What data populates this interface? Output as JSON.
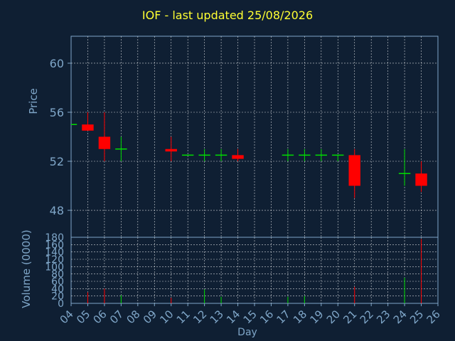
{
  "chart_data": {
    "type": "candlestick",
    "title": "IOF - last updated 25/08/2026",
    "xlabel": "Day",
    "ylabel": "Price",
    "volume_label": "Volume (0000)",
    "x_ticks": [
      "04",
      "05",
      "06",
      "07",
      "08",
      "09",
      "10",
      "11",
      "12",
      "13",
      "14",
      "15",
      "16",
      "17",
      "18",
      "19",
      "20",
      "21",
      "22",
      "23",
      "24",
      "25",
      "26"
    ],
    "price": {
      "ylim": [
        45.8,
        62.2
      ],
      "ticks": [
        48,
        52,
        56,
        60
      ],
      "candles": [
        {
          "day": "04",
          "open": 55.0,
          "high": 55.0,
          "low": 55.0,
          "close": 55.0
        },
        {
          "day": "05",
          "open": 55.0,
          "high": 56.0,
          "low": 54.5,
          "close": 54.5
        },
        {
          "day": "06",
          "open": 54.0,
          "high": 56.0,
          "low": 52.0,
          "close": 53.0
        },
        {
          "day": "07",
          "open": 53.0,
          "high": 54.0,
          "low": 52.0,
          "close": 53.0
        },
        {
          "day": "10",
          "open": 53.0,
          "high": 54.0,
          "low": 52.0,
          "close": 52.8
        },
        {
          "day": "11",
          "open": 52.5,
          "high": 52.5,
          "low": 52.5,
          "close": 52.5
        },
        {
          "day": "12",
          "open": 52.5,
          "high": 53.0,
          "low": 52.0,
          "close": 52.5
        },
        {
          "day": "13",
          "open": 52.5,
          "high": 53.0,
          "low": 52.0,
          "close": 52.5
        },
        {
          "day": "14",
          "open": 52.5,
          "high": 53.0,
          "low": 52.0,
          "close": 52.2
        },
        {
          "day": "17",
          "open": 52.5,
          "high": 53.0,
          "low": 52.0,
          "close": 52.5
        },
        {
          "day": "18",
          "open": 52.5,
          "high": 53.0,
          "low": 52.0,
          "close": 52.5
        },
        {
          "day": "19",
          "open": 52.5,
          "high": 53.0,
          "low": 52.0,
          "close": 52.5
        },
        {
          "day": "20",
          "open": 52.5,
          "high": 52.5,
          "low": 52.0,
          "close": 52.5
        },
        {
          "day": "21",
          "open": 52.5,
          "high": 53.0,
          "low": 49.0,
          "close": 50.0
        },
        {
          "day": "24",
          "open": 51.0,
          "high": 53.0,
          "low": 50.0,
          "close": 51.0
        },
        {
          "day": "25",
          "open": 51.0,
          "high": 52.0,
          "low": 49.5,
          "close": 50.0
        }
      ]
    },
    "volume": {
      "ylim": [
        0,
        180
      ],
      "ticks": [
        0,
        20,
        40,
        60,
        80,
        100,
        120,
        140,
        160,
        180
      ],
      "bars": [
        {
          "day": "05",
          "value": 30
        },
        {
          "day": "06",
          "value": 40
        },
        {
          "day": "07",
          "value": 22
        },
        {
          "day": "10",
          "value": 15
        },
        {
          "day": "12",
          "value": 38
        },
        {
          "day": "13",
          "value": 18
        },
        {
          "day": "17",
          "value": 18
        },
        {
          "day": "18",
          "value": 20
        },
        {
          "day": "21",
          "value": 45
        },
        {
          "day": "24",
          "value": 70
        },
        {
          "day": "25",
          "value": 175
        }
      ]
    },
    "colors": {
      "background": "#0f1f33",
      "up": "#00dd00",
      "down": "#ff0000",
      "axis_text": "#7fa6c8",
      "title": "#ffff33",
      "grid": "#ffffff",
      "frame": "#7fa6c8"
    },
    "grid": true
  }
}
